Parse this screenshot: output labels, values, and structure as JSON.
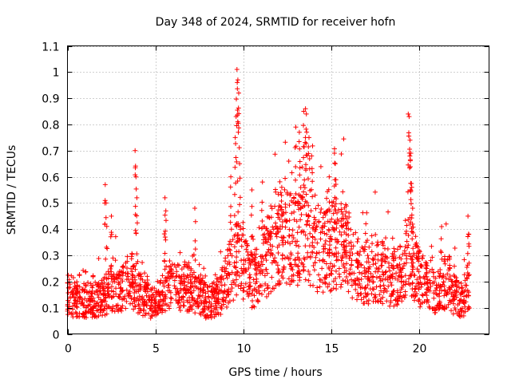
{
  "chart_data": {
    "type": "scatter",
    "title": "Day 348 of 2024, SRMTID for receiver hofn",
    "xlabel": "GPS time / hours",
    "ylabel": "SRMTID / TECUs",
    "xlim": [
      0,
      24
    ],
    "ylim": [
      0,
      1.1
    ],
    "xticks": [
      0,
      5,
      10,
      15,
      20
    ],
    "xtick_labels": [
      "0",
      "5",
      "10",
      "15",
      "20"
    ],
    "yticks": [
      0,
      0.1,
      0.2,
      0.3,
      0.4,
      0.5,
      0.6,
      0.7,
      0.8,
      0.9,
      1,
      1.1
    ],
    "ytick_labels": [
      "0",
      "0.1",
      "0.2",
      "0.3",
      "0.4",
      "0.5",
      "0.6",
      "0.7",
      "0.8",
      "0.9",
      "1",
      "1.1"
    ],
    "grid": true,
    "marker": "plus",
    "color": "#ff0000",
    "x_end": 22.85,
    "profile": [
      [
        0,
        0.13
      ],
      [
        1,
        0.12
      ],
      [
        2,
        0.13
      ],
      [
        2.5,
        0.17
      ],
      [
        3,
        0.15
      ],
      [
        3.5,
        0.2
      ],
      [
        4,
        0.15
      ],
      [
        4.5,
        0.13
      ],
      [
        5,
        0.1
      ],
      [
        5.5,
        0.16
      ],
      [
        6,
        0.17
      ],
      [
        7,
        0.17
      ],
      [
        8,
        0.11
      ],
      [
        8.7,
        0.14
      ],
      [
        9.3,
        0.24
      ],
      [
        9.8,
        0.28
      ],
      [
        10.5,
        0.19
      ],
      [
        11,
        0.22
      ],
      [
        11.5,
        0.3
      ],
      [
        12,
        0.36
      ],
      [
        12.5,
        0.38
      ],
      [
        13,
        0.32
      ],
      [
        13.5,
        0.38
      ],
      [
        14,
        0.32
      ],
      [
        14.5,
        0.3
      ],
      [
        15,
        0.3
      ],
      [
        15.5,
        0.34
      ],
      [
        16,
        0.3
      ],
      [
        16.5,
        0.23
      ],
      [
        17,
        0.22
      ],
      [
        17.5,
        0.24
      ],
      [
        18,
        0.22
      ],
      [
        18.5,
        0.2
      ],
      [
        19,
        0.22
      ],
      [
        19.5,
        0.3
      ],
      [
        20,
        0.2
      ],
      [
        20.5,
        0.17
      ],
      [
        21,
        0.15
      ],
      [
        21.5,
        0.18
      ],
      [
        22,
        0.14
      ],
      [
        22.5,
        0.12
      ],
      [
        22.85,
        0.18
      ]
    ],
    "spikes": [
      [
        2.15,
        0.57
      ],
      [
        2.2,
        0.5
      ],
      [
        2.5,
        0.45
      ],
      [
        3.85,
        0.7
      ],
      [
        3.9,
        0.6
      ],
      [
        3.95,
        0.52
      ],
      [
        5.55,
        0.52
      ],
      [
        5.6,
        0.47
      ],
      [
        7.25,
        0.48
      ],
      [
        9.3,
        0.6
      ],
      [
        9.55,
        0.75
      ],
      [
        9.6,
        0.83
      ],
      [
        9.65,
        1.01
      ],
      [
        9.7,
        0.97
      ],
      [
        9.75,
        0.92
      ],
      [
        9.8,
        0.65
      ],
      [
        10.5,
        0.55
      ],
      [
        11.1,
        0.58
      ],
      [
        12.2,
        0.56
      ],
      [
        13.0,
        0.79
      ],
      [
        13.2,
        0.77
      ],
      [
        13.45,
        0.85
      ],
      [
        13.55,
        0.86
      ],
      [
        13.6,
        0.84
      ],
      [
        13.75,
        0.75
      ],
      [
        13.9,
        0.68
      ],
      [
        14.1,
        0.53
      ],
      [
        14.9,
        0.6
      ],
      [
        15.2,
        0.69
      ],
      [
        15.25,
        0.65
      ],
      [
        15.9,
        0.44
      ],
      [
        19.4,
        0.84
      ],
      [
        19.45,
        0.83
      ],
      [
        19.5,
        0.74
      ],
      [
        19.55,
        0.69
      ],
      [
        19.6,
        0.56
      ],
      [
        19.65,
        0.48
      ],
      [
        21.3,
        0.41
      ],
      [
        22.8,
        0.45
      ],
      [
        22.85,
        0.38
      ]
    ]
  }
}
